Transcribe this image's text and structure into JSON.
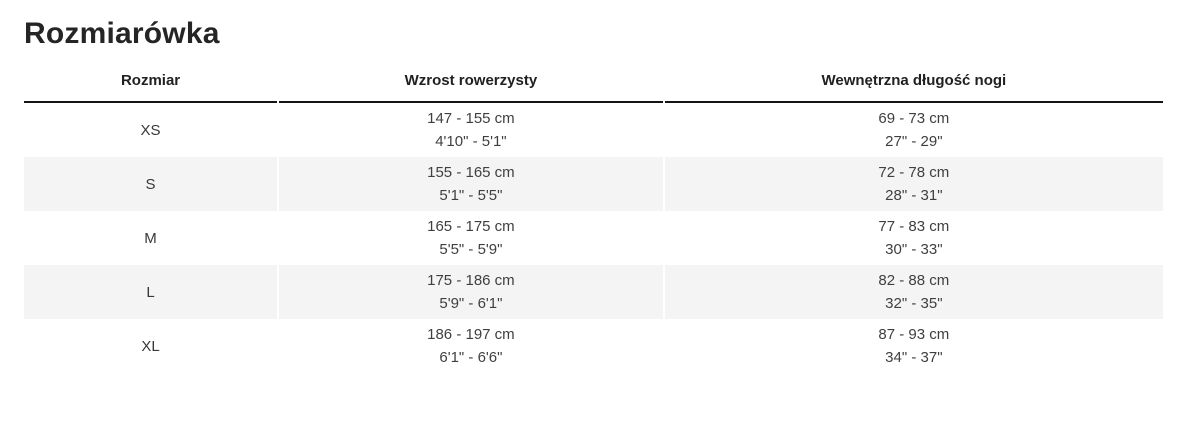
{
  "page": {
    "title": "Rozmiarówka"
  },
  "size_table": {
    "columns": {
      "size": "Rozmiar",
      "rider_height": "Wzrost rowerzysty",
      "inseam": "Wewnętrzna długość nogi"
    },
    "rows": [
      {
        "size": "XS",
        "height_cm": "147 - 155 cm",
        "height_imperial": "4'10\" - 5'1\"",
        "inseam_cm": "69 - 73 cm",
        "inseam_imperial": "27\" - 29\""
      },
      {
        "size": "S",
        "height_cm": "155 - 165 cm",
        "height_imperial": "5'1\" - 5'5\"",
        "inseam_cm": "72 - 78 cm",
        "inseam_imperial": "28\" - 31\""
      },
      {
        "size": "M",
        "height_cm": "165 - 175 cm",
        "height_imperial": "5'5\" - 5'9\"",
        "inseam_cm": "77 - 83 cm",
        "inseam_imperial": "30\" - 33\""
      },
      {
        "size": "L",
        "height_cm": "175 - 186 cm",
        "height_imperial": "5'9\" - 6'1\"",
        "inseam_cm": "82 - 88 cm",
        "inseam_imperial": "32\" - 35\""
      },
      {
        "size": "XL",
        "height_cm": "186 - 197 cm",
        "height_imperial": "6'1\" - 6'6\"",
        "inseam_cm": "87 - 93 cm",
        "inseam_imperial": "34\" - 37\""
      }
    ]
  },
  "colors": {
    "title_text": "#252526",
    "header_text": "#212121",
    "header_rule": "#141414",
    "cell_text": "#3f3f3f",
    "row_alt_bg": "#f4f4f4",
    "page_bg": "#ffffff"
  }
}
